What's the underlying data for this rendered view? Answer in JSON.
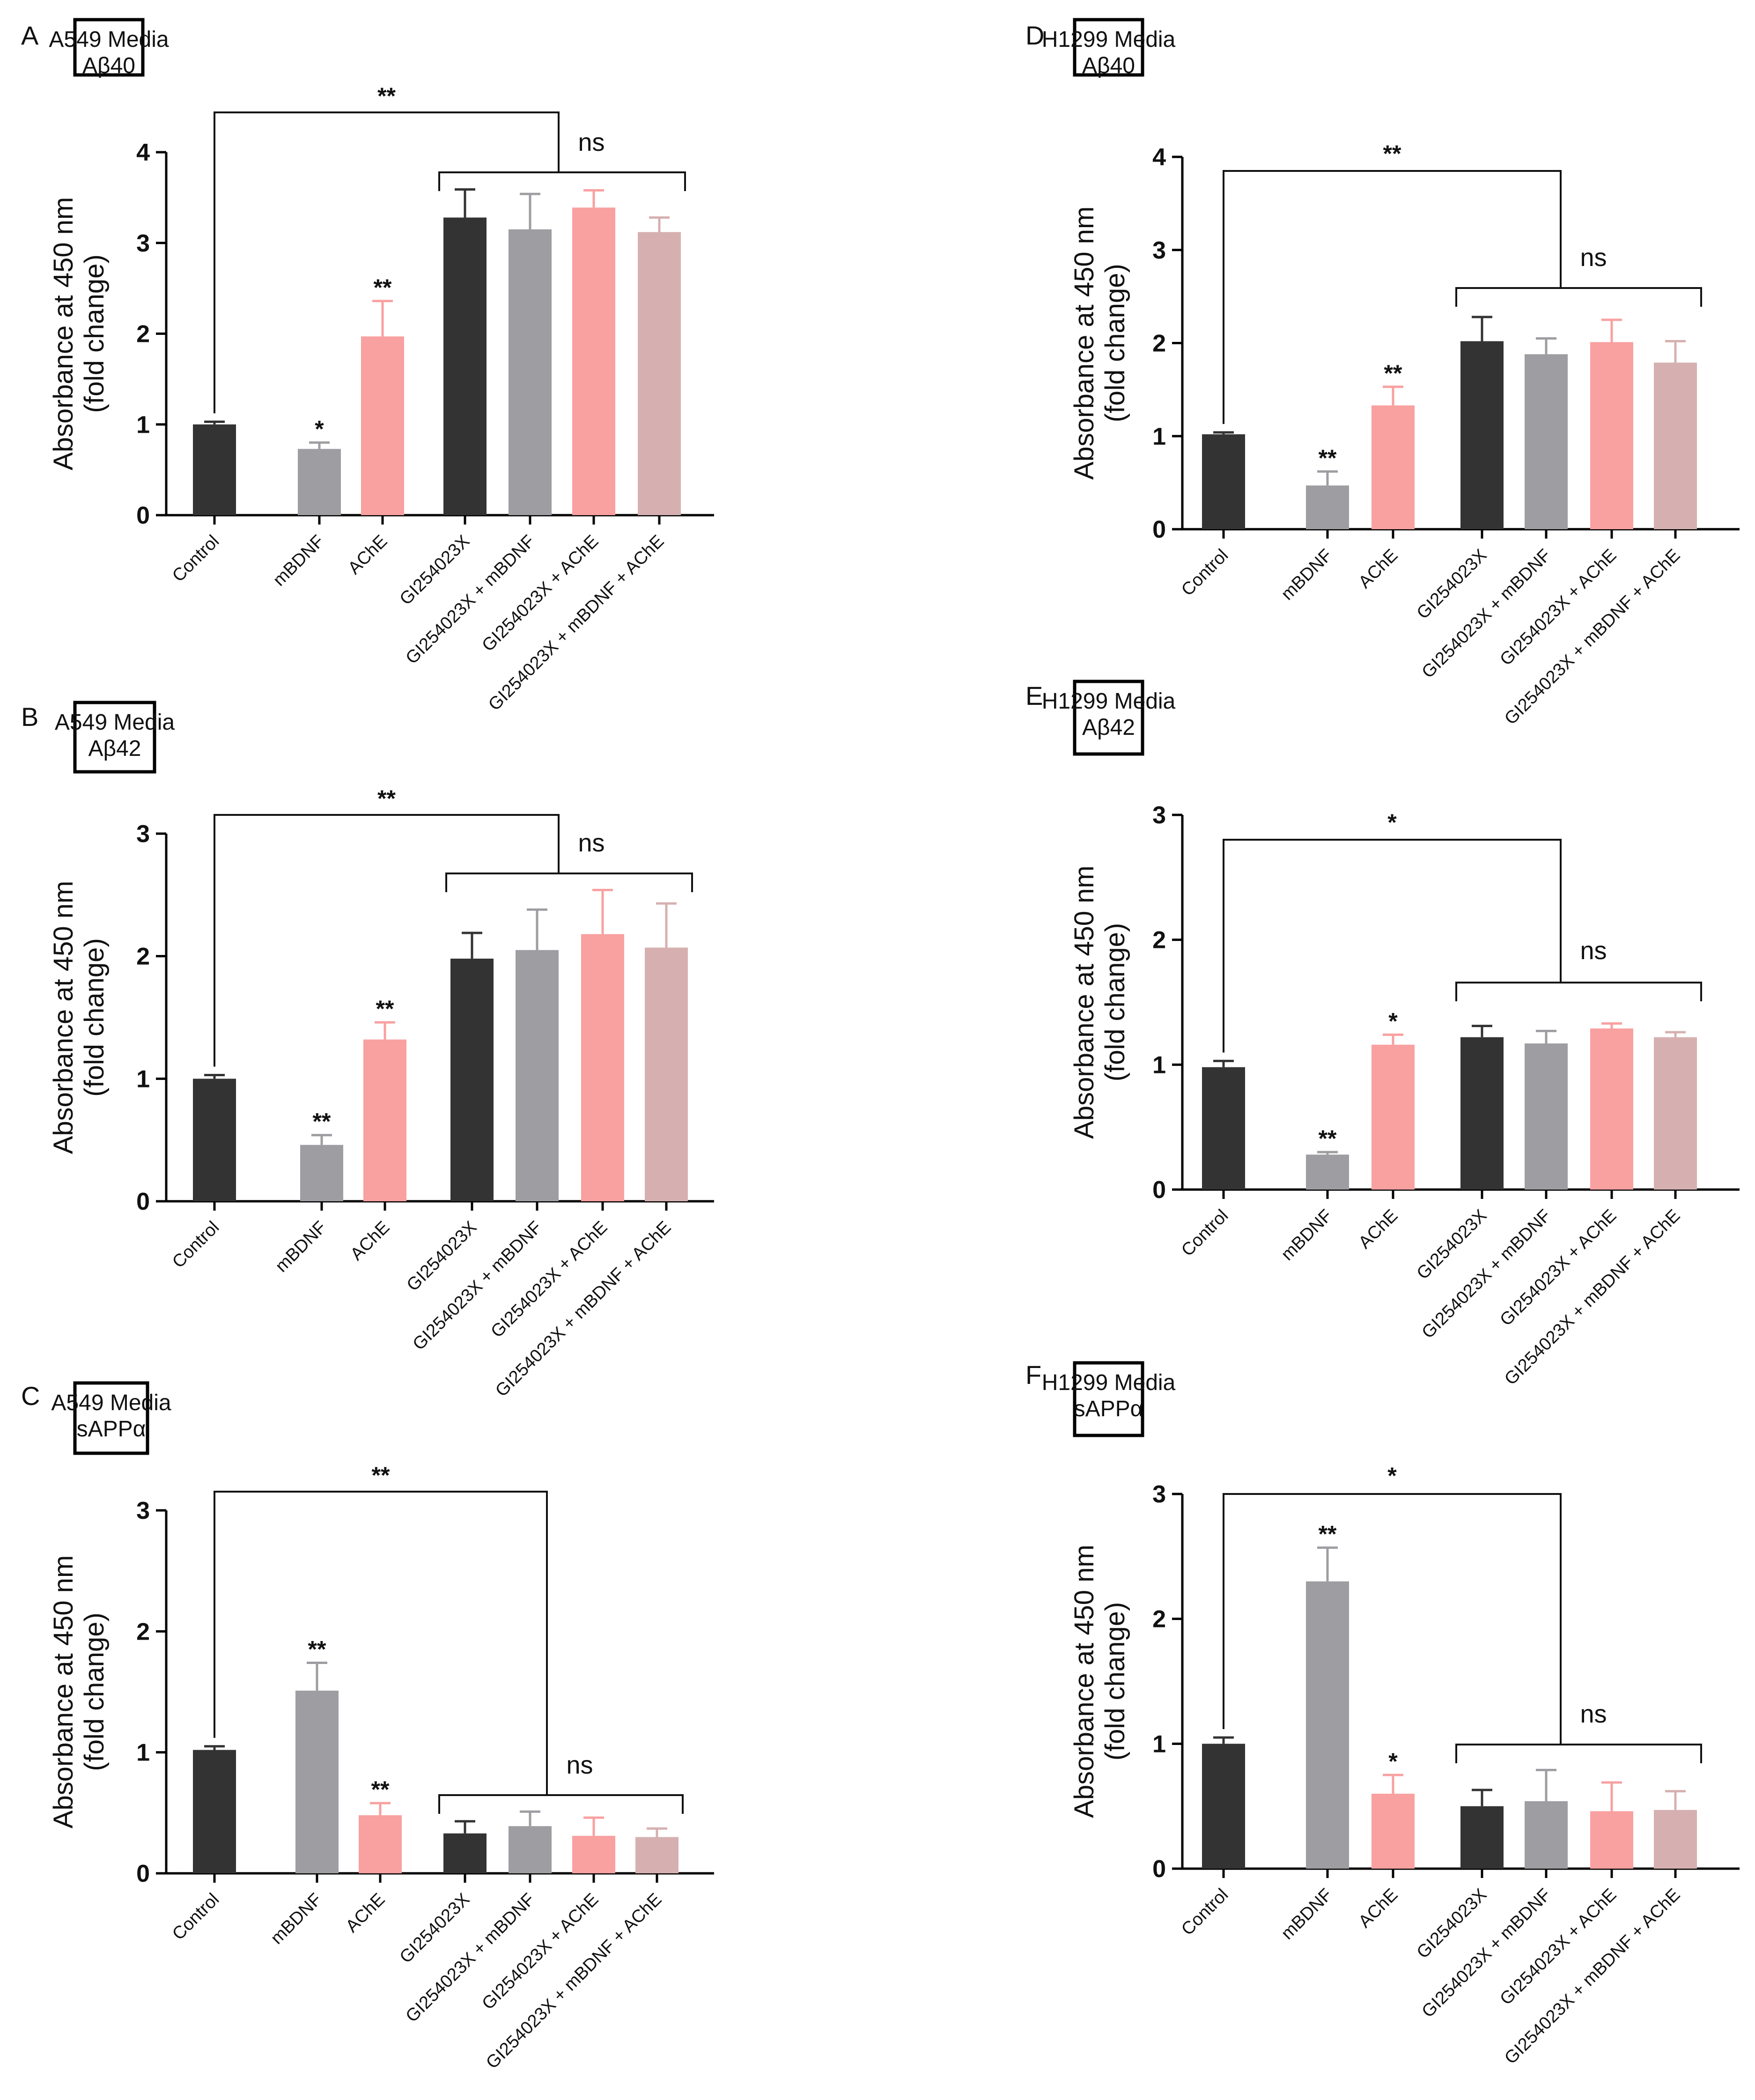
{
  "figure": {
    "ylabel_line1": "Absorbance at 450 nm",
    "ylabel_line2": "(fold change)",
    "categories": [
      "Control",
      "mBDNF",
      "AChE",
      "GI254023X",
      "GI254023X + mBDNF",
      "GI254023X + AChE",
      "GI254023X + mBDNF + AChE"
    ],
    "colors": [
      "#333333",
      "#9d9da2",
      "#f9a0a0",
      "#333333",
      "#9d9da2",
      "#f9a0a0",
      "#d6b0b0"
    ],
    "comparison_labels": {
      "overall_A": "**",
      "overall_B": "**",
      "overall_C": "**",
      "overall_D": "**",
      "overall_E": "*",
      "overall_F": "*",
      "within": "ns"
    }
  },
  "chart_data": [
    {
      "panel": "A",
      "type": "bar",
      "title_line1": "A549 Media",
      "title_line2": "Aβ40",
      "ylim": [
        0,
        4
      ],
      "yticks": [
        "0",
        "1",
        "2",
        "3",
        "4"
      ],
      "values": [
        1.0,
        0.73,
        1.97,
        3.28,
        3.15,
        3.39,
        3.12
      ],
      "errors": [
        0.03,
        0.07,
        0.39,
        0.31,
        0.39,
        0.19,
        0.16
      ],
      "stars": [
        "",
        "*",
        "**",
        "",
        "",
        "",
        ""
      ],
      "overall_sig": "**",
      "group_sig": "ns"
    },
    {
      "panel": "B",
      "type": "bar",
      "title_line1": "A549 Media",
      "title_line2": "Aβ42",
      "ylim": [
        0,
        3
      ],
      "yticks": [
        "0",
        "1",
        "2",
        "3"
      ],
      "values": [
        1.0,
        0.46,
        1.32,
        1.98,
        2.05,
        2.18,
        2.07
      ],
      "errors": [
        0.03,
        0.08,
        0.14,
        0.21,
        0.33,
        0.36,
        0.36
      ],
      "stars": [
        "",
        "**",
        "**",
        "",
        "",
        "",
        ""
      ],
      "overall_sig": "**",
      "group_sig": "ns"
    },
    {
      "panel": "C",
      "type": "bar",
      "title_line1": "A549 Media",
      "title_line2": "sAPPα",
      "ylim": [
        0,
        3
      ],
      "yticks": [
        "0",
        "1",
        "2",
        "3"
      ],
      "values": [
        1.02,
        1.51,
        0.48,
        0.33,
        0.39,
        0.31,
        0.3
      ],
      "errors": [
        0.03,
        0.23,
        0.1,
        0.1,
        0.12,
        0.15,
        0.07
      ],
      "stars": [
        "",
        "**",
        "**",
        "",
        "",
        "",
        ""
      ],
      "overall_sig": "**",
      "group_sig": "ns"
    },
    {
      "panel": "D",
      "type": "bar",
      "title_line1": "H1299 Media",
      "title_line2": "Aβ40",
      "ylim": [
        0,
        4
      ],
      "yticks": [
        "0",
        "1",
        "2",
        "3",
        "4"
      ],
      "values": [
        1.02,
        0.47,
        1.33,
        2.02,
        1.88,
        2.01,
        1.79
      ],
      "errors": [
        0.02,
        0.15,
        0.2,
        0.26,
        0.17,
        0.24,
        0.23
      ],
      "stars": [
        "",
        "**",
        "**",
        "",
        "",
        "",
        ""
      ],
      "overall_sig": "**",
      "group_sig": "ns"
    },
    {
      "panel": "E",
      "type": "bar",
      "title_line1": "H1299 Media",
      "title_line2": "Aβ42",
      "ylim": [
        0,
        3
      ],
      "yticks": [
        "0",
        "1",
        "2",
        "3"
      ],
      "values": [
        0.98,
        0.28,
        1.16,
        1.22,
        1.17,
        1.29,
        1.22
      ],
      "errors": [
        0.05,
        0.02,
        0.08,
        0.09,
        0.1,
        0.04,
        0.04
      ],
      "stars": [
        "",
        "**",
        "*",
        "",
        "",
        "",
        ""
      ],
      "overall_sig": "*",
      "group_sig": "ns"
    },
    {
      "panel": "F",
      "type": "bar",
      "title_line1": "H1299 Media",
      "title_line2": "sAPPα",
      "ylim": [
        0,
        3
      ],
      "yticks": [
        "0",
        "1",
        "2",
        "3"
      ],
      "values": [
        1.0,
        2.3,
        0.6,
        0.5,
        0.54,
        0.46,
        0.47
      ],
      "errors": [
        0.05,
        0.27,
        0.15,
        0.13,
        0.25,
        0.23,
        0.15
      ],
      "stars": [
        "",
        "**",
        "*",
        "",
        "",
        "",
        ""
      ],
      "overall_sig": "*",
      "group_sig": "ns"
    }
  ]
}
